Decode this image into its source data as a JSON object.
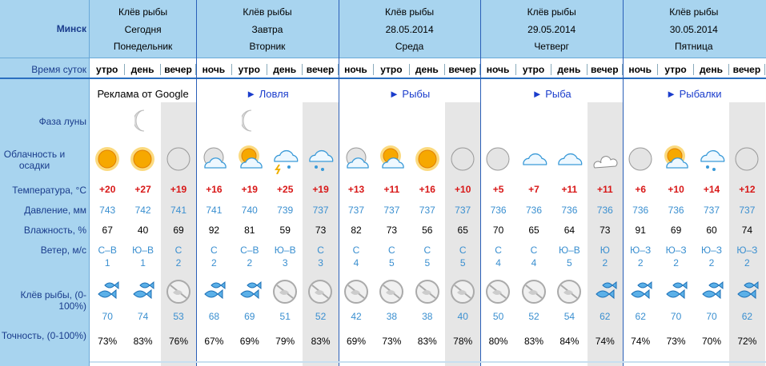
{
  "city": "Минск",
  "row_labels": {
    "time_of_day": "Время суток",
    "moon": "Фаза луны",
    "clouds": "Облачность и осадки",
    "temperature": "Температура, °C",
    "pressure": "Давление, мм",
    "humidity": "Влажность, %",
    "wind": "Ветер, м/с",
    "bite": "Клёв рыбы, (0-100%)",
    "accuracy": "Точность, (0-100%)"
  },
  "days": [
    {
      "title": "Клёв рыбы",
      "date": "Сегодня",
      "weekday": "Понедельник",
      "ad": "Реклама от Google",
      "periods": [
        {
          "time": "утро",
          "temperature": "+20",
          "pressure": 743,
          "humidity": 67,
          "wind_direction": "С–В",
          "wind_speed": 1,
          "bite": 70,
          "accuracy": "73%"
        },
        {
          "time": "день",
          "temperature": "+27",
          "pressure": 742,
          "humidity": 40,
          "wind_direction": "Ю–В",
          "wind_speed": 1,
          "bite": 74,
          "accuracy": "83%"
        },
        {
          "time": "вечер",
          "temperature": "+19",
          "pressure": 741,
          "humidity": 69,
          "wind_direction": "С",
          "wind_speed": 2,
          "bite": 53,
          "accuracy": "76%"
        }
      ]
    },
    {
      "title": "Клёв рыбы",
      "date": "Завтра",
      "weekday": "Вторник",
      "ad": "► Ловля",
      "periods": [
        {
          "time": "ночь",
          "temperature": "+16",
          "pressure": 741,
          "humidity": 92,
          "wind_direction": "С",
          "wind_speed": 2,
          "bite": 68,
          "accuracy": "67%"
        },
        {
          "time": "утро",
          "temperature": "+19",
          "pressure": 740,
          "humidity": 81,
          "wind_direction": "С–В",
          "wind_speed": 2,
          "bite": 69,
          "accuracy": "69%"
        },
        {
          "time": "день",
          "temperature": "+25",
          "pressure": 739,
          "humidity": 59,
          "wind_direction": "Ю–В",
          "wind_speed": 3,
          "bite": 51,
          "accuracy": "79%"
        },
        {
          "time": "вечер",
          "temperature": "+19",
          "pressure": 737,
          "humidity": 73,
          "wind_direction": "С",
          "wind_speed": 3,
          "bite": 52,
          "accuracy": "83%"
        }
      ]
    },
    {
      "title": "Клёв рыбы",
      "date": "28.05.2014",
      "weekday": "Среда",
      "ad": "► Рыбы",
      "periods": [
        {
          "time": "ночь",
          "temperature": "+13",
          "pressure": 737,
          "humidity": 82,
          "wind_direction": "С",
          "wind_speed": 4,
          "bite": 42,
          "accuracy": "69%"
        },
        {
          "time": "утро",
          "temperature": "+11",
          "pressure": 737,
          "humidity": 73,
          "wind_direction": "С",
          "wind_speed": 5,
          "bite": 38,
          "accuracy": "73%"
        },
        {
          "time": "день",
          "temperature": "+16",
          "pressure": 737,
          "humidity": 56,
          "wind_direction": "С",
          "wind_speed": 5,
          "bite": 38,
          "accuracy": "83%"
        },
        {
          "time": "вечер",
          "temperature": "+10",
          "pressure": 737,
          "humidity": 65,
          "wind_direction": "С",
          "wind_speed": 5,
          "bite": 40,
          "accuracy": "78%"
        }
      ]
    },
    {
      "title": "Клёв рыбы",
      "date": "29.05.2014",
      "weekday": "Четверг",
      "ad": "► Рыба",
      "periods": [
        {
          "time": "ночь",
          "temperature": "+5",
          "pressure": 736,
          "humidity": 70,
          "wind_direction": "С",
          "wind_speed": 4,
          "bite": 50,
          "accuracy": "80%"
        },
        {
          "time": "утро",
          "temperature": "+7",
          "pressure": 736,
          "humidity": 65,
          "wind_direction": "С",
          "wind_speed": 4,
          "bite": 52,
          "accuracy": "83%"
        },
        {
          "time": "день",
          "temperature": "+11",
          "pressure": 736,
          "humidity": 64,
          "wind_direction": "Ю–В",
          "wind_speed": 5,
          "bite": 54,
          "accuracy": "84%"
        },
        {
          "time": "вечер",
          "temperature": "+11",
          "pressure": 736,
          "humidity": 73,
          "wind_direction": "Ю",
          "wind_speed": 2,
          "bite": 62,
          "accuracy": "74%"
        }
      ]
    },
    {
      "title": "Клёв рыбы",
      "date": "30.05.2014",
      "weekday": "Пятница",
      "ad": "► Рыбалки",
      "periods": [
        {
          "time": "ночь",
          "temperature": "+6",
          "pressure": 736,
          "humidity": 91,
          "wind_direction": "Ю–З",
          "wind_speed": 2,
          "bite": 62,
          "accuracy": "74%"
        },
        {
          "time": "утро",
          "temperature": "+10",
          "pressure": 736,
          "humidity": 69,
          "wind_direction": "Ю–З",
          "wind_speed": 2,
          "bite": 70,
          "accuracy": "73%"
        },
        {
          "time": "день",
          "temperature": "+14",
          "pressure": 737,
          "humidity": 60,
          "wind_direction": "Ю–З",
          "wind_speed": 2,
          "bite": 70,
          "accuracy": "70%"
        },
        {
          "time": "вечер",
          "temperature": "+12",
          "pressure": 737,
          "humidity": 74,
          "wind_direction": "Ю–З",
          "wind_speed": 2,
          "bite": 62,
          "accuracy": "72%"
        }
      ]
    }
  ]
}
